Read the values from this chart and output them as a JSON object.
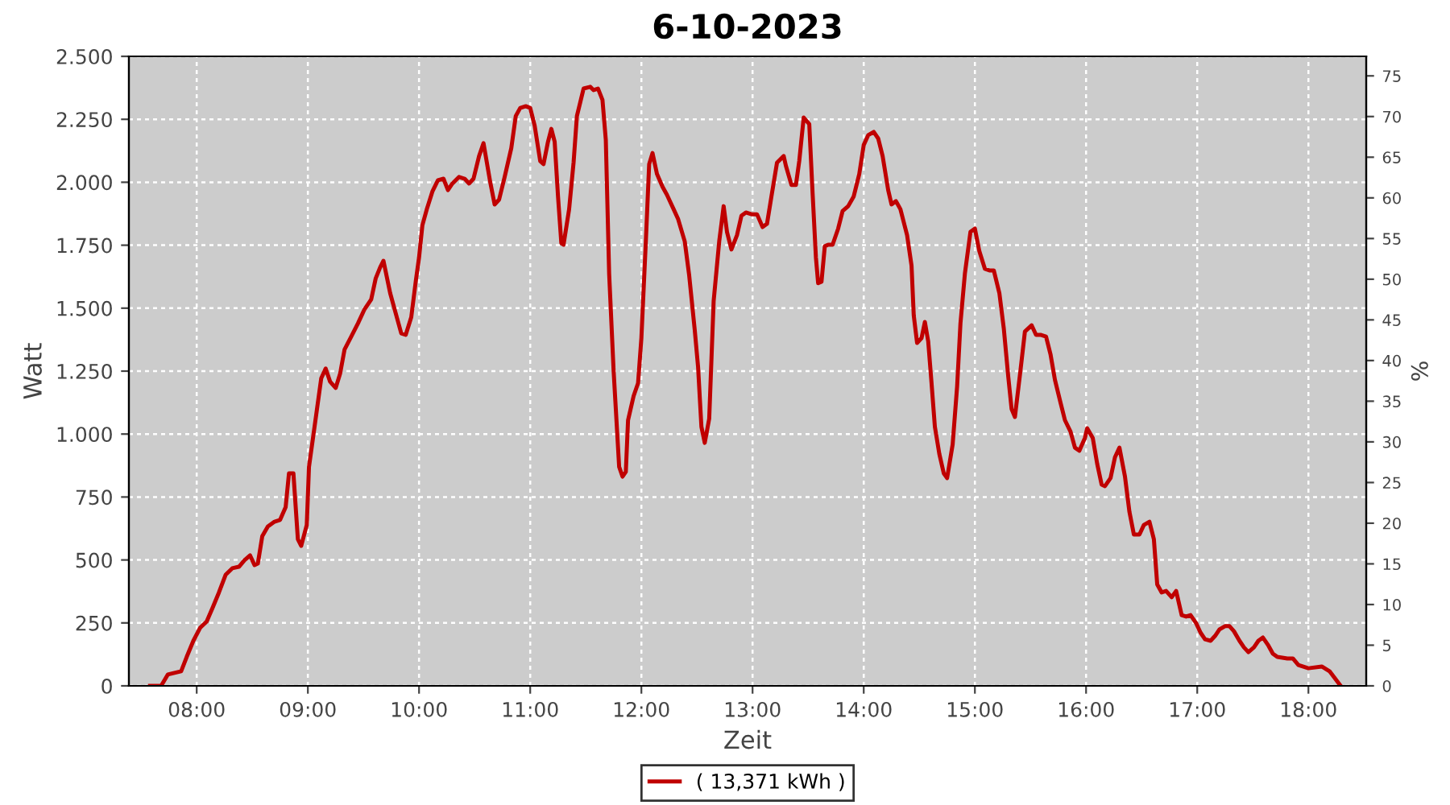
{
  "chart_data": {
    "type": "line",
    "title": "6-10-2023",
    "xlabel": "Zeit",
    "ylabel": "Watt",
    "y2label": "%",
    "x": [
      7.58,
      7.68,
      7.74,
      7.86,
      7.91,
      7.97,
      8.03,
      8.09,
      8.14,
      8.2,
      8.26,
      8.32,
      8.38,
      8.43,
      8.48,
      8.52,
      8.55,
      8.59,
      8.64,
      8.7,
      8.75,
      8.8,
      8.83,
      8.87,
      8.91,
      8.94,
      8.99,
      9.01,
      9.07,
      9.12,
      9.16,
      9.2,
      9.25,
      9.29,
      9.33,
      9.39,
      9.45,
      9.51,
      9.57,
      9.61,
      9.65,
      9.68,
      9.74,
      9.78,
      9.84,
      9.88,
      9.93,
      9.97,
      10.0,
      10.03,
      10.07,
      10.12,
      10.17,
      10.22,
      10.26,
      10.3,
      10.36,
      10.41,
      10.45,
      10.49,
      10.54,
      10.58,
      10.64,
      10.68,
      10.72,
      10.77,
      10.83,
      10.87,
      10.91,
      10.96,
      11.0,
      11.04,
      11.09,
      11.12,
      11.16,
      11.19,
      11.22,
      11.25,
      11.28,
      11.3,
      11.35,
      11.39,
      11.42,
      11.48,
      11.54,
      11.57,
      11.61,
      11.65,
      11.68,
      11.71,
      11.75,
      11.8,
      11.83,
      11.86,
      11.88,
      11.93,
      11.97,
      12.0,
      12.04,
      12.07,
      12.1,
      12.14,
      12.19,
      12.23,
      12.29,
      12.33,
      12.39,
      12.43,
      12.48,
      12.51,
      12.54,
      12.57,
      12.61,
      12.65,
      12.7,
      12.74,
      12.77,
      12.81,
      12.86,
      12.9,
      12.94,
      12.99,
      13.04,
      13.09,
      13.13,
      13.17,
      13.22,
      13.28,
      13.3,
      13.35,
      13.39,
      13.42,
      13.46,
      13.51,
      13.54,
      13.57,
      13.59,
      13.62,
      13.65,
      13.68,
      13.72,
      13.77,
      13.81,
      13.86,
      13.91,
      13.96,
      14.0,
      14.04,
      14.09,
      14.13,
      14.17,
      14.22,
      14.25,
      14.29,
      14.33,
      14.39,
      14.43,
      14.45,
      14.48,
      14.52,
      14.55,
      14.58,
      14.61,
      14.64,
      14.68,
      14.72,
      14.75,
      14.8,
      14.84,
      14.87,
      14.91,
      14.96,
      15.0,
      15.04,
      15.09,
      15.13,
      15.17,
      15.22,
      15.26,
      15.3,
      15.33,
      15.36,
      15.41,
      15.45,
      15.51,
      15.55,
      15.59,
      15.64,
      15.68,
      15.72,
      15.77,
      15.81,
      15.86,
      15.9,
      15.94,
      15.99,
      16.01,
      16.06,
      16.1,
      16.14,
      16.17,
      16.22,
      16.26,
      16.3,
      16.35,
      16.39,
      16.43,
      16.48,
      16.52,
      16.57,
      16.61,
      16.64,
      16.68,
      16.72,
      16.77,
      16.81,
      16.86,
      16.9,
      16.94,
      16.99,
      17.03,
      17.07,
      17.12,
      17.16,
      17.2,
      17.25,
      17.29,
      17.33,
      17.38,
      17.42,
      17.46,
      17.51,
      17.55,
      17.59,
      17.64,
      17.68,
      17.72,
      17.81,
      17.86,
      17.91,
      18.0,
      18.12,
      18.19,
      18.29
    ],
    "series": [
      {
        "name": "( 13,371 kWh )",
        "color": "#c00000",
        "values": [
          0,
          0,
          45,
          58,
          115,
          179,
          230,
          256,
          307,
          371,
          441,
          467,
          473,
          499,
          518,
          480,
          486,
          595,
          633,
          652,
          659,
          710,
          844,
          844,
          582,
          556,
          639,
          870,
          1061,
          1221,
          1260,
          1208,
          1183,
          1240,
          1336,
          1387,
          1439,
          1496,
          1535,
          1618,
          1662,
          1688,
          1560,
          1496,
          1400,
          1394,
          1464,
          1605,
          1701,
          1829,
          1893,
          1963,
          2008,
          2014,
          1969,
          1995,
          2021,
          2014,
          1995,
          2014,
          2104,
          2155,
          2001,
          1912,
          1931,
          2021,
          2136,
          2263,
          2295,
          2302,
          2295,
          2225,
          2084,
          2072,
          2161,
          2212,
          2161,
          1944,
          1758,
          1752,
          1893,
          2078,
          2263,
          2372,
          2379,
          2366,
          2372,
          2327,
          2168,
          1637,
          1253,
          870,
          831,
          850,
          1055,
          1151,
          1202,
          1381,
          1765,
          2072,
          2116,
          2033,
          1982,
          1950,
          1893,
          1854,
          1765,
          1630,
          1413,
          1266,
          1029,
          965,
          1061,
          1528,
          1765,
          1905,
          1803,
          1733,
          1790,
          1867,
          1880,
          1873,
          1873,
          1822,
          1835,
          1944,
          2078,
          2104,
          2065,
          1989,
          1989,
          2084,
          2257,
          2231,
          1957,
          1701,
          1599,
          1605,
          1746,
          1752,
          1752,
          1816,
          1886,
          1905,
          1944,
          2033,
          2148,
          2187,
          2200,
          2174,
          2104,
          1969,
          1912,
          1925,
          1893,
          1790,
          1669,
          1471,
          1362,
          1381,
          1445,
          1368,
          1202,
          1029,
          921,
          844,
          825,
          959,
          1189,
          1439,
          1637,
          1803,
          1816,
          1726,
          1656,
          1650,
          1650,
          1560,
          1419,
          1228,
          1100,
          1068,
          1253,
          1407,
          1432,
          1394,
          1394,
          1387,
          1317,
          1215,
          1125,
          1055,
          1010,
          946,
          934,
          985,
          1023,
          985,
          882,
          799,
          793,
          825,
          908,
          946,
          831,
          691,
          601,
          601,
          639,
          652,
          582,
          403,
          371,
          377,
          352,
          377,
          281,
          275,
          281,
          249,
          211,
          185,
          179,
          198,
          224,
          237,
          237,
          217,
          179,
          153,
          134,
          153,
          179,
          192,
          160,
          128,
          115,
          109,
          109,
          83,
          70,
          77,
          58,
          0
        ]
      }
    ],
    "xlim": [
      7.39,
      18.52
    ],
    "xticks": [
      {
        "value": 8,
        "label": "08:00"
      },
      {
        "value": 9,
        "label": "09:00"
      },
      {
        "value": 10,
        "label": "10:00"
      },
      {
        "value": 11,
        "label": "11:00"
      },
      {
        "value": 12,
        "label": "12:00"
      },
      {
        "value": 13,
        "label": "13:00"
      },
      {
        "value": 14,
        "label": "14:00"
      },
      {
        "value": 15,
        "label": "15:00"
      },
      {
        "value": 16,
        "label": "16:00"
      },
      {
        "value": 17,
        "label": "17:00"
      },
      {
        "value": 18,
        "label": "18:00"
      }
    ],
    "ylim": [
      0,
      2500
    ],
    "yticks": [
      {
        "value": 0,
        "label": "0"
      },
      {
        "value": 250,
        "label": "250"
      },
      {
        "value": 500,
        "label": "500"
      },
      {
        "value": 750,
        "label": "750"
      },
      {
        "value": 1000,
        "label": "1.000"
      },
      {
        "value": 1250,
        "label": "1.250"
      },
      {
        "value": 1500,
        "label": "1.500"
      },
      {
        "value": 1750,
        "label": "1.750"
      },
      {
        "value": 2000,
        "label": "2.000"
      },
      {
        "value": 2250,
        "label": "2.250"
      },
      {
        "value": 2500,
        "label": "2.500"
      }
    ],
    "y2lim": [
      0,
      77.4
    ],
    "y2ticks": [
      0,
      5,
      10,
      15,
      20,
      25,
      30,
      35,
      40,
      45,
      50,
      55,
      60,
      65,
      70,
      75
    ],
    "grid": true,
    "legend": "bottom",
    "marker": "none",
    "line_style": "solid"
  }
}
